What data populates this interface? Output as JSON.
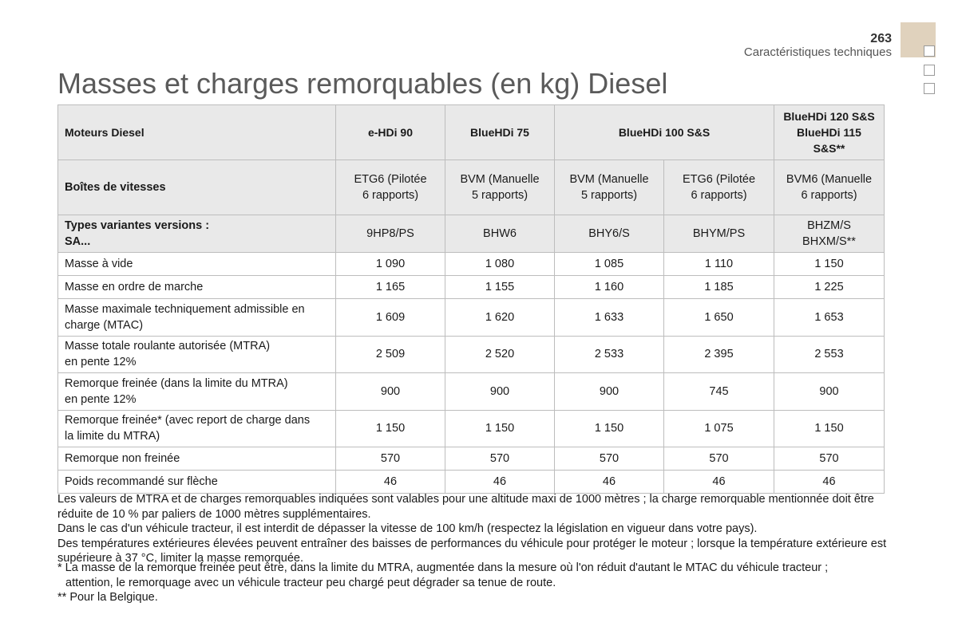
{
  "header": {
    "page_number": "263",
    "section": "Caractéristiques techniques"
  },
  "title": "Masses et charges remorquables (en kg) Diesel",
  "table": {
    "engine_label": "Moteurs Diesel",
    "engines": [
      "e-HDi 90",
      "BlueHDi 75",
      "BlueHDi 100 S&S",
      "BlueHDi 120 S&S",
      "BlueHDi 115 S&S**"
    ],
    "gearbox_label": "Boîtes de vitesses",
    "gearboxes": [
      [
        "ETG6 (Pilotée",
        "6 rapports)"
      ],
      [
        "BVM (Manuelle",
        "5 rapports)"
      ],
      [
        "BVM (Manuelle",
        "5 rapports)"
      ],
      [
        "ETG6 (Pilotée",
        "6 rapports)"
      ],
      [
        "BVM6 (Manuelle",
        "6 rapports)"
      ]
    ],
    "types_label": [
      "Types variantes versions :",
      "SA..."
    ],
    "types": [
      "9HP8/PS",
      "BHW6",
      "BHY6/S",
      "BHYM/PS",
      "BHZM/S",
      "BHXM/S**"
    ],
    "rows": [
      {
        "label": [
          "Masse à vide"
        ],
        "values": [
          "1 090",
          "1 080",
          "1 085",
          "1 110",
          "1 150"
        ]
      },
      {
        "label": [
          "Masse en ordre de marche"
        ],
        "values": [
          "1 165",
          "1 155",
          "1 160",
          "1 185",
          "1 225"
        ]
      },
      {
        "label": [
          "Masse maximale techniquement admissible en",
          "charge (MTAC)"
        ],
        "values": [
          "1 609",
          "1 620",
          "1 633",
          "1 650",
          "1 653"
        ]
      },
      {
        "label": [
          "Masse totale roulante autorisée (MTRA)",
          "en pente 12%"
        ],
        "values": [
          "2 509",
          "2 520",
          "2 533",
          "2 395",
          "2 553"
        ]
      },
      {
        "label": [
          "Remorque freinée (dans la limite du MTRA)",
          "en pente 12%"
        ],
        "values": [
          "900",
          "900",
          "900",
          "745",
          "900"
        ]
      },
      {
        "label": [
          "Remorque freinée* (avec report de charge dans",
          "la limite du MTRA)"
        ],
        "values": [
          "1 150",
          "1 150",
          "1 150",
          "1 075",
          "1 150"
        ]
      },
      {
        "label": [
          "Remorque non freinée"
        ],
        "values": [
          "570",
          "570",
          "570",
          "570",
          "570"
        ]
      },
      {
        "label": [
          "Poids recommandé sur flèche"
        ],
        "values": [
          "46",
          "46",
          "46",
          "46",
          "46"
        ]
      }
    ]
  },
  "notes": [
    "Les valeurs de MTRA et de charges remorquables indiquées sont valables pour une altitude maxi de 1000 mètres ; la charge remorquable mentionnée doit être réduite de 10 % par paliers de 1000 mètres supplémentaires.",
    "Dans le cas d'un véhicule tracteur, il est interdit de dépasser la vitesse de 100 km/h (respectez la législation en vigueur dans votre pays).",
    "Des températures extérieures élevées peuvent entraîner des baisses de performances du véhicule pour protéger le moteur ; lorsque la température extérieure est supérieure à 37 °C, limiter la masse remorquée."
  ],
  "footnotes": {
    "star_line1": "* La masse de la remorque freinée peut être, dans la limite du MTRA, augmentée dans la mesure où l'on réduit d'autant le MTAC du véhicule tracteur ;",
    "star_line2": "attention, le remorquage avec un véhicule tracteur peu chargé peut dégrader sa tenue de route.",
    "double_star": "** Pour la Belgique."
  },
  "colors": {
    "tab_marker": "#e0d2bd",
    "header_row_bg": "#e9e9e9",
    "title": "#5a5a5a"
  }
}
